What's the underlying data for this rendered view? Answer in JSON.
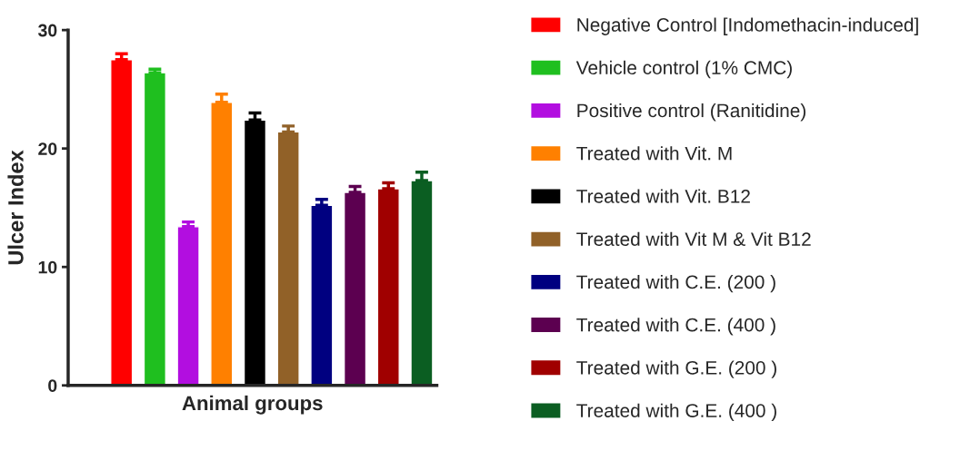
{
  "chart_data": {
    "type": "bar",
    "stacked": true,
    "xlabel": "Animal groups",
    "ylabel": "Ulcer Index",
    "categories": [
      null,
      null,
      null,
      null,
      null,
      null,
      null,
      null,
      null,
      null
    ],
    "series": [
      {
        "name": "Negative Control [Indomethacin-induced]",
        "color": "#ff0000",
        "values": [
          27.5,
          null,
          null,
          null,
          null,
          null,
          null,
          null,
          null,
          null
        ],
        "errors": [
          [
            27.5,
            28.0
          ],
          null,
          null,
          null,
          null,
          null,
          null,
          null,
          null,
          null
        ]
      },
      {
        "name": "Vehicle control (1% CMC)",
        "color": "#1fbf1f",
        "values": [
          null,
          26.4,
          null,
          null,
          null,
          null,
          null,
          null,
          null,
          null
        ],
        "errors": [
          null,
          [
            26.4,
            26.7
          ],
          null,
          null,
          null,
          null,
          null,
          null,
          null,
          null
        ]
      },
      {
        "name": "Positive control (Ranitidine)",
        "color": "#b20ee0",
        "values": [
          null,
          null,
          13.4,
          null,
          null,
          null,
          null,
          null,
          null,
          null
        ],
        "errors": [
          null,
          null,
          [
            13.4,
            13.8
          ],
          null,
          null,
          null,
          null,
          null,
          null,
          null
        ]
      },
      {
        "name": "Treated with Vit. M",
        "color": "#ff8000",
        "values": [
          null,
          null,
          null,
          23.9,
          null,
          null,
          null,
          null,
          null,
          null
        ],
        "errors": [
          null,
          null,
          null,
          [
            23.9,
            24.6
          ],
          null,
          null,
          null,
          null,
          null,
          null
        ]
      },
      {
        "name": "Treated with Vit. B12",
        "color": "#000000",
        "values": [
          null,
          null,
          null,
          null,
          22.4,
          null,
          null,
          null,
          null,
          null
        ],
        "errors": [
          null,
          null,
          null,
          null,
          [
            22.4,
            23.0
          ],
          null,
          null,
          null,
          null,
          null
        ]
      },
      {
        "name": "Treated with Vit M & Vit B12",
        "color": "#916128",
        "values": [
          null,
          null,
          null,
          null,
          null,
          21.4,
          null,
          null,
          null,
          null
        ],
        "errors": [
          null,
          null,
          null,
          null,
          null,
          [
            21.4,
            21.9
          ],
          null,
          null,
          null,
          null
        ]
      },
      {
        "name": "Treated with C.E. (200 )",
        "color": "#000080",
        "values": [
          null,
          null,
          null,
          null,
          null,
          null,
          15.2,
          null,
          null,
          null
        ],
        "errors": [
          null,
          null,
          null,
          null,
          null,
          null,
          [
            15.2,
            15.7
          ],
          null,
          null,
          null
        ]
      },
      {
        "name": "Treated with C.E. (400 )",
        "color": "#5c0050",
        "values": [
          null,
          null,
          null,
          null,
          null,
          null,
          null,
          16.3,
          null,
          null
        ],
        "errors": [
          null,
          null,
          null,
          null,
          null,
          null,
          null,
          [
            16.3,
            16.8
          ],
          null,
          null
        ]
      },
      {
        "name": "Treated with G.E. (200 )",
        "color": "#a00000",
        "values": [
          null,
          null,
          null,
          null,
          null,
          null,
          null,
          null,
          16.6,
          null
        ],
        "errors": [
          null,
          null,
          null,
          null,
          null,
          null,
          null,
          null,
          [
            16.6,
            17.1
          ],
          null
        ]
      },
      {
        "name": "Treated with G.E. (400 )",
        "color": "#0b5e22",
        "values": [
          null,
          null,
          null,
          null,
          null,
          null,
          null,
          null,
          null,
          17.3
        ],
        "errors": [
          null,
          null,
          null,
          null,
          null,
          null,
          null,
          null,
          null,
          [
            17.3,
            18.0
          ]
        ]
      }
    ],
    "ylim": [
      0,
      30
    ],
    "yticks": [
      0,
      10,
      20,
      30
    ],
    "tick_labels": "y",
    "legend": "right",
    "grid": false
  }
}
